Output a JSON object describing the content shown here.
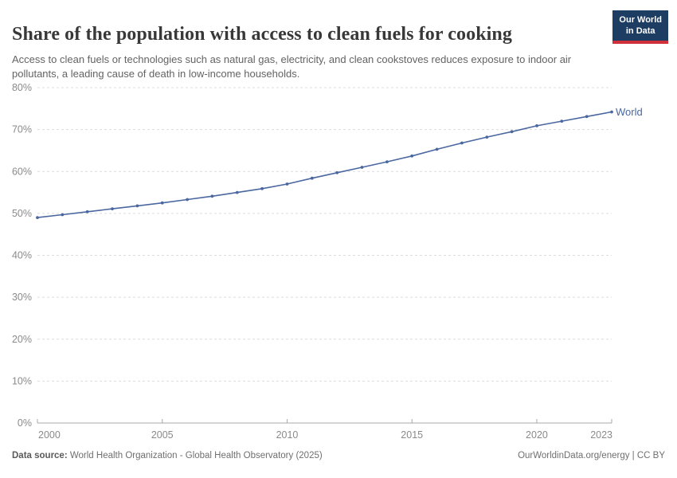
{
  "header": {
    "title": "Share of the population with access to clean fuels for cooking",
    "subtitle": "Access to clean fuels or technologies such as natural gas, electricity, and clean cookstoves reduces exposure to indoor air pollutants, a leading cause of death in low-income households.",
    "logo": {
      "line1": "Our World",
      "line2": "in Data",
      "bg_color": "#1d3d63",
      "accent_color": "#cf3039"
    }
  },
  "chart_data": {
    "type": "line",
    "title": "Share of the population with access to clean fuels for cooking",
    "x": [
      2000,
      2001,
      2002,
      2003,
      2004,
      2005,
      2006,
      2007,
      2008,
      2009,
      2010,
      2011,
      2012,
      2013,
      2014,
      2015,
      2016,
      2017,
      2018,
      2019,
      2020,
      2021,
      2022,
      2023
    ],
    "series": [
      {
        "name": "World",
        "color": "#4a67a0",
        "values": [
          49.0,
          49.7,
          50.4,
          51.1,
          51.8,
          52.5,
          53.3,
          54.1,
          55.0,
          55.9,
          57.0,
          58.4,
          59.7,
          61.0,
          62.3,
          63.7,
          65.3,
          66.8,
          68.2,
          69.5,
          70.9,
          72.0,
          73.1,
          74.2
        ]
      }
    ],
    "xlabel": "",
    "ylabel": "",
    "ylim": [
      0,
      80
    ],
    "yticks": [
      0,
      10,
      20,
      30,
      40,
      50,
      60,
      70,
      80
    ],
    "ytick_suffix": "%",
    "xticks": [
      2000,
      2005,
      2010,
      2015,
      2020,
      2023
    ],
    "grid": "horizontal-dashed",
    "gridline_color": "#dcdcdc",
    "axis_color": "#a8a8a8",
    "tick_label_color": "#8a8a8a",
    "legend_position": "end-of-line-label",
    "end_label": "World"
  },
  "footer": {
    "source_label": "Data source:",
    "source_text": " World Health Organization - Global Health Observatory (2025)",
    "credit": "OurWorldinData.org/energy | CC BY"
  }
}
